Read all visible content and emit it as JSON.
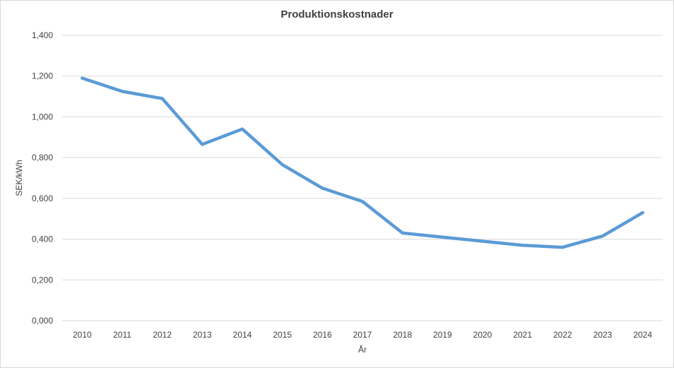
{
  "chart_data": {
    "type": "line",
    "title": "Produktionskostnader",
    "xlabel": "År",
    "ylabel": "SEK/kWh",
    "categories": [
      "2010",
      "2011",
      "2012",
      "2013",
      "2014",
      "2015",
      "2016",
      "2017",
      "2018",
      "2019",
      "2020",
      "2021",
      "2022",
      "2023",
      "2024"
    ],
    "series": [
      {
        "values": [
          1.19,
          1.125,
          1.09,
          0.865,
          0.94,
          0.765,
          0.65,
          0.585,
          0.43,
          0.41,
          0.39,
          0.37,
          0.36,
          0.415,
          0.53
        ],
        "color": "#5b9bd5"
      }
    ],
    "ylim": [
      0,
      1.4
    ],
    "yticks": [
      0,
      0.2,
      0.4,
      0.6,
      0.8,
      1.0,
      1.2,
      1.4
    ],
    "ytick_labels": [
      "0,000",
      "0,200",
      "0,400",
      "0,600",
      "0,800",
      "1,000",
      "1,200",
      "1,400"
    ],
    "grid": true,
    "colors": {
      "grid": "#d9d9d9",
      "text": "#404040",
      "line": "#5b9bd5"
    }
  }
}
